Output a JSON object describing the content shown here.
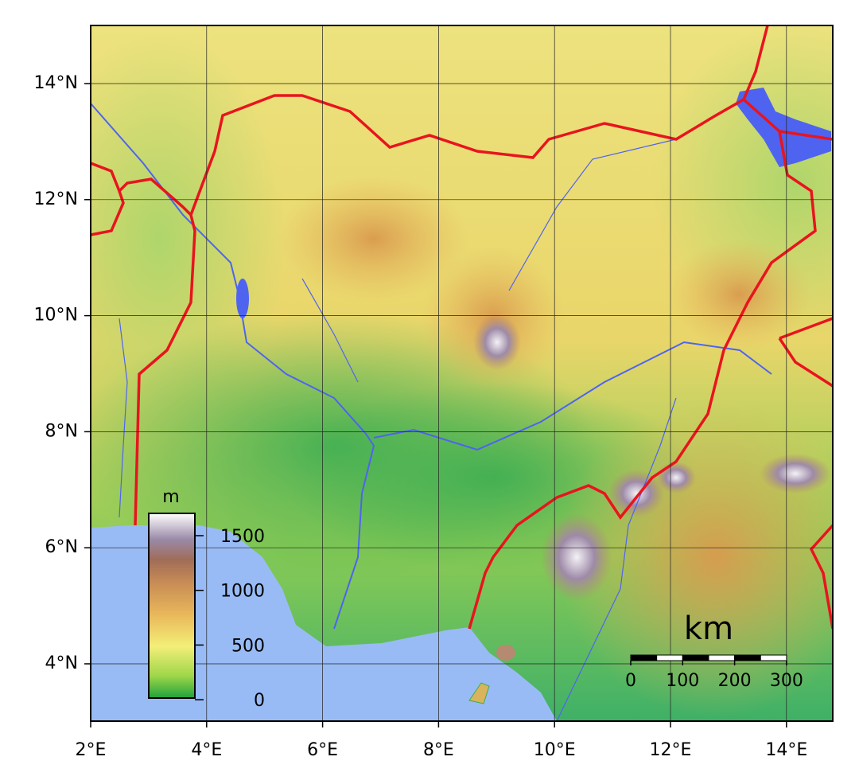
{
  "map": {
    "x_axis": {
      "labels": [
        "2°E",
        "4°E",
        "6°E",
        "8°E",
        "10°E",
        "12°E",
        "14°E"
      ]
    },
    "y_axis": {
      "labels": [
        "14°N",
        "12°N",
        "10°N",
        "8°N",
        "6°N",
        "4°N"
      ]
    },
    "elevation_legend": {
      "unit": "m",
      "ticks": [
        "1500",
        "1000",
        "500",
        "0"
      ]
    },
    "scale_bar": {
      "unit": "km",
      "ticks": [
        "0",
        "100",
        "200",
        "300"
      ]
    }
  }
}
